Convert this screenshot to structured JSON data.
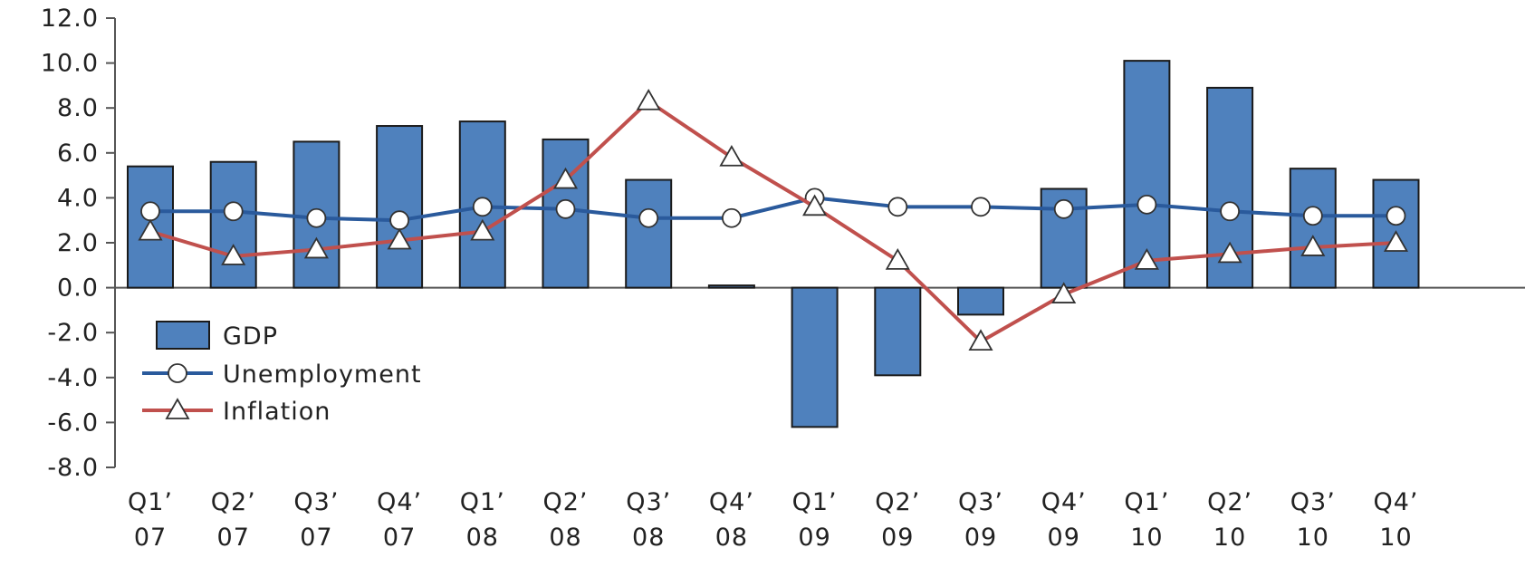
{
  "chart_data": {
    "type": "bar",
    "title": "",
    "xlabel": "",
    "ylabel": "",
    "ylim": [
      -8,
      12
    ],
    "yticks": [
      "12.0",
      "10.0",
      "8.0",
      "6.0",
      "4.0",
      "2.0",
      "0.0",
      "-2.0",
      "-4.0",
      "-6.0",
      "-8.0"
    ],
    "categories": [
      [
        "Q1’",
        "07"
      ],
      [
        "Q2’",
        "07"
      ],
      [
        "Q3’",
        "07"
      ],
      [
        "Q4’",
        "07"
      ],
      [
        "Q1’",
        "08"
      ],
      [
        "Q2’",
        "08"
      ],
      [
        "Q3’",
        "08"
      ],
      [
        "Q4’",
        "08"
      ],
      [
        "Q1’",
        "09"
      ],
      [
        "Q2’",
        "09"
      ],
      [
        "Q3’",
        "09"
      ],
      [
        "Q4’",
        "09"
      ],
      [
        "Q1’",
        "10"
      ],
      [
        "Q2’",
        "10"
      ],
      [
        "Q3’",
        "10"
      ],
      [
        "Q4’",
        "10"
      ]
    ],
    "series": [
      {
        "name": "GDP",
        "type": "bar",
        "color": "#4f81bd",
        "values": [
          5.4,
          5.6,
          6.5,
          7.2,
          7.4,
          6.6,
          4.8,
          0.1,
          -6.2,
          -3.9,
          -1.2,
          4.4,
          10.1,
          8.9,
          5.3,
          4.8
        ]
      },
      {
        "name": "Unemployment",
        "type": "line",
        "marker": "circle",
        "color": "#2a5a9c",
        "values": [
          3.4,
          3.4,
          3.1,
          3.0,
          3.6,
          3.5,
          3.1,
          3.1,
          4.0,
          3.6,
          3.6,
          3.5,
          3.7,
          3.4,
          3.2,
          3.2
        ]
      },
      {
        "name": "Inflation",
        "type": "line",
        "marker": "triangle",
        "color": "#c0504d",
        "values": [
          2.5,
          1.4,
          1.7,
          2.1,
          2.5,
          4.8,
          8.3,
          5.8,
          3.6,
          1.2,
          -2.4,
          -0.3,
          1.2,
          1.5,
          1.8,
          2.0
        ]
      }
    ],
    "legend_position": "bottom-left",
    "grid": false
  }
}
